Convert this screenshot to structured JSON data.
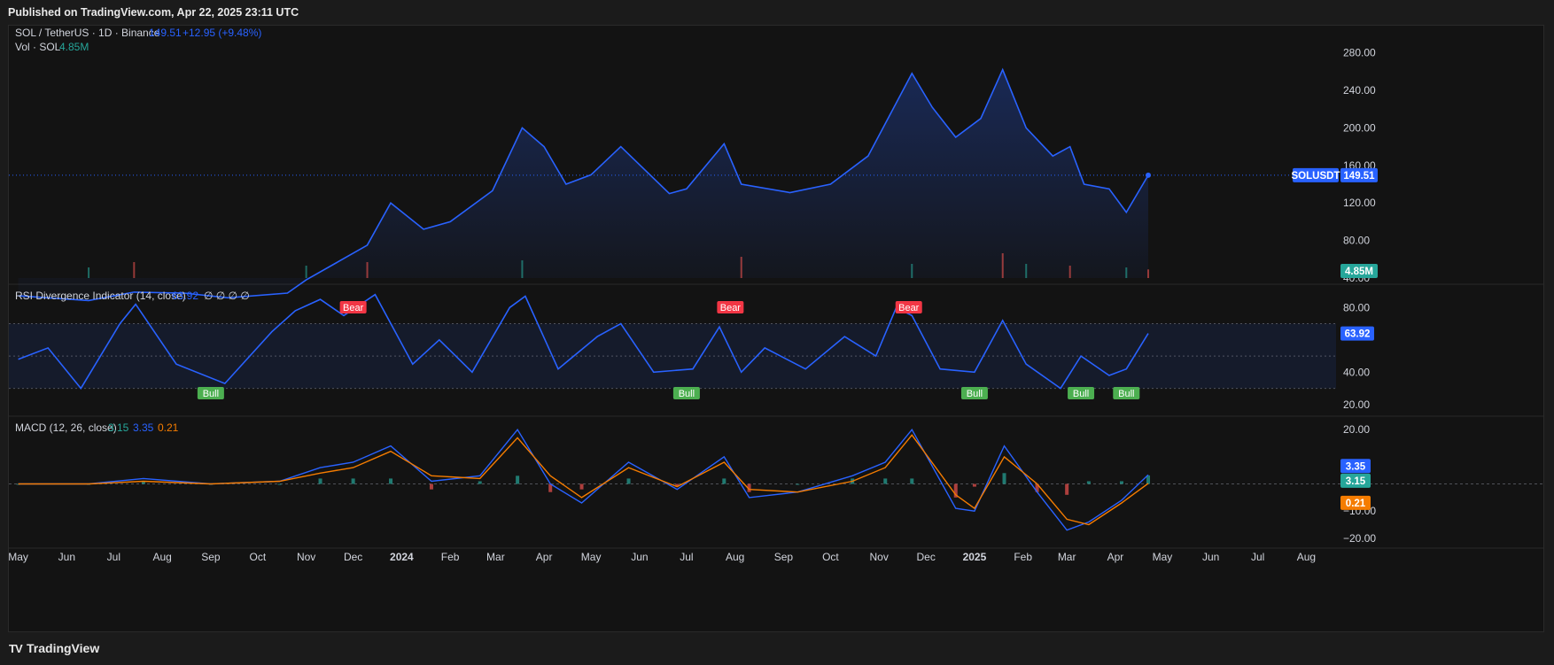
{
  "header": {
    "published": "Published on TradingView.com, Apr 22, 2025 23:11 UTC"
  },
  "footer": {
    "brand": "TradingView",
    "logo_text": "TV"
  },
  "colors": {
    "price_line": "#2962ff",
    "rsi_line": "#2962ff",
    "macd_line": "#2962ff",
    "signal_line": "#f57c00",
    "bear": "#f23645",
    "bull": "#4caf50",
    "vol_up": "#26a69a",
    "vol_down": "#ef5350"
  },
  "legend": {
    "main": {
      "symbol": "SOL / TetherUS · 1D · Binance",
      "close": "149.51",
      "change": "+12.95 (+9.48%)"
    },
    "vol": {
      "label": "Vol · SOL",
      "value": "4.85M"
    },
    "rsi": {
      "label": "RSI Divergence Indicator (14, close)",
      "value": "63.92",
      "extras": "∅ ∅ ∅ ∅"
    },
    "macd": {
      "label": "MACD (12, 26, close)",
      "hist": "3.15",
      "macd": "3.35",
      "signal": "0.21"
    }
  },
  "badges": {
    "symbol_tag": "SOLUSDT",
    "price": "149.51",
    "volume": "4.85M",
    "rsi": "63.92",
    "macd": "3.35",
    "hist": "3.15",
    "signal": "0.21"
  },
  "chart_data": [
    {
      "type": "line",
      "title": "SOL / TetherUS · 1D · Binance",
      "ylim": [
        40,
        290
      ],
      "yticks": [
        "280.00",
        "240.00",
        "200.00",
        "160.00",
        "120.00",
        "80.00",
        "40.00"
      ],
      "xticks": [
        "May",
        "Jun",
        "Jul",
        "Aug",
        "Sep",
        "Oct",
        "Nov",
        "Dec",
        "2024",
        "Feb",
        "Mar",
        "Apr",
        "May",
        "Jun",
        "Jul",
        "Aug",
        "Sep",
        "Oct",
        "Nov",
        "Dec",
        "2025",
        "Feb",
        "Mar",
        "Apr",
        "May",
        "Jun",
        "Jul",
        "Aug"
      ],
      "x": [
        "2023-05-01",
        "2023-06-15",
        "2023-07-14",
        "2023-08-15",
        "2023-09-12",
        "2023-10-20",
        "2023-11-01",
        "2023-11-20",
        "2023-12-10",
        "2023-12-25",
        "2024-01-15",
        "2024-02-01",
        "2024-02-28",
        "2024-03-18",
        "2024-04-01",
        "2024-04-15",
        "2024-05-01",
        "2024-05-20",
        "2024-06-20",
        "2024-07-01",
        "2024-07-25",
        "2024-08-05",
        "2024-09-05",
        "2024-10-01",
        "2024-10-25",
        "2024-11-22",
        "2024-12-05",
        "2024-12-20",
        "2025-01-05",
        "2025-01-19",
        "2025-02-03",
        "2025-02-20",
        "2025-03-03",
        "2025-03-12",
        "2025-03-28",
        "2025-04-08",
        "2025-04-22"
      ],
      "series": [
        {
          "values": [
            21,
            16,
            25,
            24,
            19,
            24,
            38,
            56,
            75,
            120,
            92,
            100,
            133,
            200,
            180,
            140,
            150,
            180,
            130,
            135,
            183,
            140,
            131,
            140,
            170,
            258,
            222,
            190,
            210,
            262,
            200,
            170,
            180,
            140,
            135,
            110,
            149.51
          ]
        }
      ]
    },
    {
      "type": "bar",
      "title": "Vol · SOL",
      "x": [
        "2023-06-15",
        "2023-07-14",
        "2023-11-01",
        "2023-12-10",
        "2024-03-18",
        "2024-08-05",
        "2024-11-22",
        "2025-01-19",
        "2025-02-03",
        "2025-03-03",
        "2025-04-08",
        "2025-04-22"
      ],
      "series": [
        {
          "values": [
            6,
            9,
            7,
            9,
            10,
            12,
            8,
            14,
            8,
            7,
            6,
            4.85
          ]
        }
      ]
    },
    {
      "type": "line",
      "title": "RSI Divergence Indicator (14, close)",
      "ylim": [
        15,
        90
      ],
      "yticks": [
        "80.00",
        "40.00",
        "20.00"
      ],
      "x": [
        "2023-05-01",
        "2023-05-20",
        "2023-06-10",
        "2023-07-05",
        "2023-07-15",
        "2023-08-10",
        "2023-09-10",
        "2023-10-10",
        "2023-10-25",
        "2023-11-10",
        "2023-11-25",
        "2023-12-15",
        "2024-01-08",
        "2024-01-25",
        "2024-02-15",
        "2024-03-10",
        "2024-03-20",
        "2024-04-10",
        "2024-05-05",
        "2024-05-20",
        "2024-06-10",
        "2024-07-05",
        "2024-07-22",
        "2024-08-05",
        "2024-08-20",
        "2024-09-15",
        "2024-10-10",
        "2024-10-30",
        "2024-11-12",
        "2024-11-22",
        "2024-12-10",
        "2025-01-01",
        "2025-01-19",
        "2025-02-03",
        "2025-02-25",
        "2025-03-10",
        "2025-03-28",
        "2025-04-08",
        "2025-04-22"
      ],
      "series": [
        {
          "values": [
            48,
            55,
            30,
            70,
            82,
            45,
            33,
            65,
            78,
            85,
            75,
            88,
            45,
            60,
            40,
            80,
            87,
            42,
            62,
            70,
            40,
            42,
            68,
            40,
            55,
            42,
            62,
            50,
            80,
            75,
            42,
            40,
            72,
            45,
            30,
            50,
            38,
            42,
            63.92
          ]
        }
      ],
      "annotations": [
        {
          "label": "Bear",
          "x": "2023-12-01"
        },
        {
          "label": "Bull",
          "x": "2023-09-01"
        },
        {
          "label": "Bear",
          "x": "2024-07-29"
        },
        {
          "label": "Bull",
          "x": "2024-07-01"
        },
        {
          "label": "Bear",
          "x": "2024-11-20"
        },
        {
          "label": "Bull",
          "x": "2025-01-01"
        },
        {
          "label": "Bull",
          "x": "2025-03-10"
        },
        {
          "label": "Bull",
          "x": "2025-04-08"
        }
      ]
    },
    {
      "type": "line",
      "title": "MACD (12, 26, close)",
      "ylim": [
        -22,
        23
      ],
      "yticks": [
        "20.00",
        "−10.00",
        "−20.00"
      ],
      "x": [
        "2023-05-01",
        "2023-06-15",
        "2023-07-20",
        "2023-09-01",
        "2023-10-15",
        "2023-11-10",
        "2023-12-01",
        "2023-12-25",
        "2024-01-20",
        "2024-02-20",
        "2024-03-15",
        "2024-04-05",
        "2024-04-25",
        "2024-05-25",
        "2024-06-25",
        "2024-07-25",
        "2024-08-10",
        "2024-09-10",
        "2024-10-15",
        "2024-11-05",
        "2024-11-22",
        "2024-12-20",
        "2025-01-01",
        "2025-01-20",
        "2025-02-10",
        "2025-03-01",
        "2025-03-15",
        "2025-04-05",
        "2025-04-22"
      ],
      "series": [
        {
          "name": "MACD",
          "values": [
            0,
            0,
            2,
            0,
            1,
            6,
            8,
            14,
            1,
            3,
            20,
            0,
            -7,
            8,
            -2,
            10,
            -5,
            -3,
            3,
            8,
            20,
            -9,
            -10,
            14,
            -3,
            -17,
            -14,
            -6,
            3.35
          ]
        },
        {
          "name": "Signal",
          "values": [
            0,
            0,
            1,
            0,
            1,
            4,
            6,
            12,
            3,
            2,
            17,
            3,
            -5,
            6,
            -1,
            8,
            -2,
            -3,
            1,
            6,
            18,
            -4,
            -9,
            10,
            0,
            -13,
            -15,
            -7,
            0.21
          ]
        },
        {
          "name": "Histogram",
          "values": [
            0,
            0,
            1,
            0,
            0,
            2,
            2,
            2,
            -2,
            1,
            3,
            -3,
            -2,
            2,
            -1,
            2,
            -3,
            0,
            2,
            2,
            2,
            -5,
            -1,
            4,
            -3,
            -4,
            1,
            1,
            3.15
          ]
        }
      ]
    }
  ]
}
